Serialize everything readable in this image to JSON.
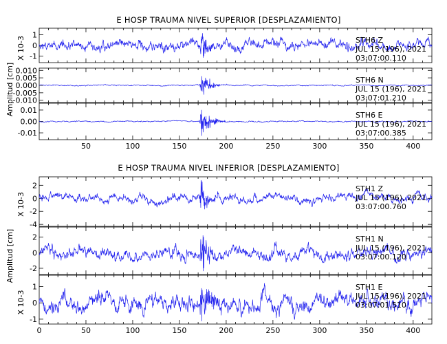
{
  "colors": {
    "trace": "#2222ee",
    "axis": "#000000",
    "background": "#ffffff"
  },
  "chart_data": [
    {
      "type": "line",
      "title": "E HOSP TRAUMA NIVEL SUPERIOR [DESPLAZAMIENTO]",
      "ylabel": "Amplitud [cm]",
      "xlim": [
        0,
        420
      ],
      "xticks": [
        50,
        100,
        150,
        200,
        250,
        300,
        350,
        400
      ],
      "xtick_labels": [
        "50",
        "100",
        "150",
        "200",
        "250",
        "300",
        "350",
        "400"
      ],
      "event_x": 173,
      "panels": [
        {
          "channel": "Z",
          "ylim": [
            -1.6,
            1.6
          ],
          "yticks": [
            -1,
            0,
            1
          ],
          "ytick_labels": [
            "-1",
            "0",
            "1"
          ],
          "y_multiplier": "X 10-3",
          "noise_std": 0.33,
          "peak": 1.1,
          "annotation": [
            "STH6   Z",
            "JUL 15 (196), 2021",
            "03:07:00.110"
          ]
        },
        {
          "channel": "N",
          "ylim": [
            -0.0115,
            0.0115
          ],
          "yticks": [
            -0.01,
            -0.005,
            0.0,
            0.005,
            0.01
          ],
          "ytick_labels": [
            "-0.010",
            "-0.005",
            "0.000",
            "0.005",
            "0.010"
          ],
          "y_multiplier": "",
          "noise_std": 0.00025,
          "peak": 0.0085,
          "annotation": [
            "STH6   N",
            "JUL 15 (196), 2021",
            "03:07:01.210"
          ]
        },
        {
          "channel": "E",
          "ylim": [
            -0.016,
            0.016
          ],
          "yticks": [
            -0.01,
            0.0,
            0.01
          ],
          "ytick_labels": [
            "-0.01",
            "0.00",
            "0.01"
          ],
          "y_multiplier": "",
          "noise_std": 0.00035,
          "peak": 0.014,
          "annotation": [
            "STH6   E",
            "JUL 15 (196), 2021",
            "03:07:00.385"
          ]
        }
      ]
    },
    {
      "type": "line",
      "title": "E HOSP TRAUMA NIVEL INFERIOR [DESPLAZAMIENTO]",
      "ylabel": "Amplitud [cm]",
      "xlim": [
        0,
        420
      ],
      "xticks": [
        0,
        50,
        100,
        150,
        200,
        250,
        300,
        350,
        400
      ],
      "xtick_labels": [
        "0",
        "50",
        "100",
        "150",
        "200",
        "250",
        "300",
        "350",
        "400"
      ],
      "event_x": 173,
      "panels": [
        {
          "channel": "Z",
          "ylim": [
            -4.3,
            3.3
          ],
          "yticks": [
            -4,
            -2,
            0,
            2
          ],
          "ytick_labels": [
            "-4",
            "-2",
            "0",
            "2"
          ],
          "y_multiplier": "X 10-3",
          "noise_std": 0.45,
          "peak": 2.6,
          "annotation": [
            "STH1   Z",
            "JUL 15 (196), 2021",
            "03:07:00.760"
          ]
        },
        {
          "channel": "N",
          "ylim": [
            -2.8,
            3.3
          ],
          "yticks": [
            -2,
            0,
            2
          ],
          "ytick_labels": [
            "-2",
            "0",
            "2"
          ],
          "y_multiplier": "",
          "noise_std": 0.55,
          "peak": 2.4,
          "annotation": [
            "STH1   N",
            "JUL 15 (196), 2021",
            "03:07:00.120"
          ]
        },
        {
          "channel": "E",
          "ylim": [
            -1.3,
            1.7
          ],
          "yticks": [
            -1,
            0,
            1
          ],
          "ytick_labels": [
            "-1",
            "0",
            "1"
          ],
          "y_multiplier": "X 10-3",
          "noise_std": 0.36,
          "peak": 1.4,
          "annotation": [
            "STH1   E",
            "JUL 15 (196), 2021",
            "03:07:01.510"
          ]
        }
      ]
    }
  ]
}
